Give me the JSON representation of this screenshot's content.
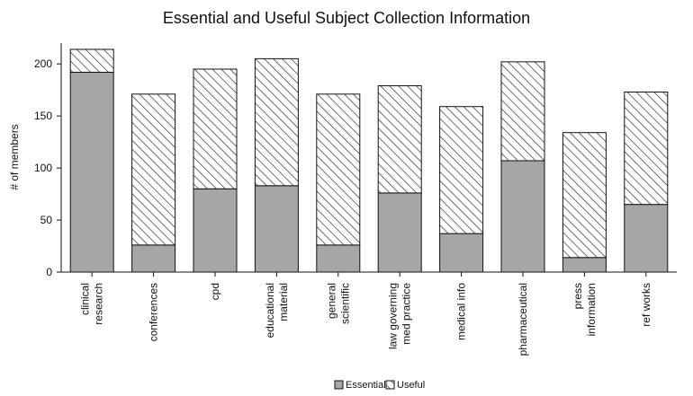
{
  "chart_data": {
    "type": "bar",
    "stacked": true,
    "title": "Essential and Useful Subject Collection Information",
    "xlabel": "",
    "ylabel": "# of members",
    "ylim": [
      0,
      220
    ],
    "yticks": [
      0,
      50,
      100,
      150,
      200
    ],
    "grid": false,
    "legend_position": "bottom",
    "categories": [
      [
        "clinical",
        "research"
      ],
      [
        "conferences"
      ],
      [
        "cpd"
      ],
      [
        "educational",
        "material"
      ],
      [
        "general",
        "scientific"
      ],
      [
        "law governing",
        "med practice"
      ],
      [
        "medical info"
      ],
      [
        "pharmaceutical"
      ],
      [
        "press",
        "information"
      ],
      [
        "ref works"
      ]
    ],
    "series": [
      {
        "name": "Essential",
        "color": "#a6a6a6",
        "pattern": "solid",
        "values": [
          192,
          26,
          80,
          83,
          26,
          76,
          37,
          107,
          14,
          65
        ]
      },
      {
        "name": "Useful",
        "color": "#ffffff",
        "pattern": "diagonal-hatch",
        "values": [
          22,
          145,
          115,
          122,
          145,
          103,
          122,
          95,
          120,
          108
        ]
      }
    ]
  }
}
